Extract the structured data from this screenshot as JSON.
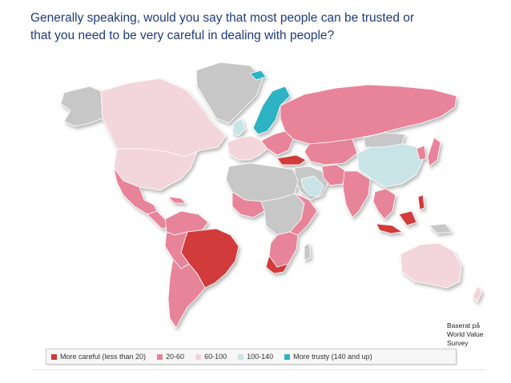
{
  "title_line1": "Generally speaking, would you say that most people can be trusted or",
  "title_line2": "that you need to be very careful in dealing with people?",
  "source_lines": [
    "Baserat på",
    "World Value",
    "Survey"
  ],
  "colors": {
    "more_careful": "#d23a3a",
    "c20_60": "#e7849a",
    "c60_100": "#f3d6dc",
    "c100_140": "#c8e4e6",
    "more_trusty": "#2fb3c4",
    "no_data": "#c7c7c7"
  },
  "legend": [
    {
      "label": "More careful (less than 20)",
      "color": "#d23a3a"
    },
    {
      "label": "20-60",
      "color": "#e7849a"
    },
    {
      "label": "60-100",
      "color": "#f3d6dc"
    },
    {
      "label": "100-140",
      "color": "#c8e4e6"
    },
    {
      "label": "More trusty (140 and up)",
      "color": "#2fb3c4"
    }
  ]
}
